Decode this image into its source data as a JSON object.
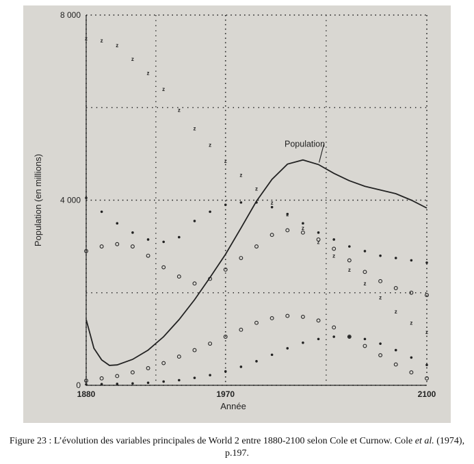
{
  "figure": {
    "caption_parts": [
      {
        "text": "Figure 23 : L’évolution des variables principales de World 2 entre 1880-2100 selon Cole et Curnow. Cole ",
        "italic": false
      },
      {
        "text": "et al.",
        "italic": true
      },
      {
        "text": " (1974), p.197.",
        "italic": false
      }
    ],
    "colors": {
      "scan_bg": "#d9d7d2",
      "ink": "#222222",
      "caption": "#111111"
    }
  },
  "chart_data": {
    "type": "line",
    "title": "",
    "xlabel": "Année",
    "ylabel": "Population (en millions)",
    "xlim": [
      1880,
      2100
    ],
    "ylim": [
      0,
      8000
    ],
    "x_ticks": [
      1880,
      1970,
      2100
    ],
    "y_ticks": [
      0,
      4000,
      8000
    ],
    "grid": true,
    "legend": "none",
    "series": [
      {
        "name": "Population",
        "marker": "line",
        "points": [
          [
            1880,
            1420
          ],
          [
            1885,
            800
          ],
          [
            1890,
            550
          ],
          [
            1895,
            430
          ],
          [
            1900,
            440
          ],
          [
            1910,
            560
          ],
          [
            1920,
            760
          ],
          [
            1930,
            1050
          ],
          [
            1940,
            1420
          ],
          [
            1950,
            1850
          ],
          [
            1960,
            2330
          ],
          [
            1970,
            2830
          ],
          [
            1980,
            3400
          ],
          [
            1990,
            3980
          ],
          [
            2000,
            4450
          ],
          [
            2010,
            4780
          ],
          [
            2020,
            4870
          ],
          [
            2030,
            4770
          ],
          [
            2040,
            4580
          ],
          [
            2050,
            4420
          ],
          [
            2060,
            4300
          ],
          [
            2070,
            4220
          ],
          [
            2080,
            4140
          ],
          [
            2090,
            4000
          ],
          [
            2100,
            3830
          ]
        ]
      },
      {
        "marker": "z",
        "points": [
          [
            1880,
            7500
          ],
          [
            1890,
            7450
          ],
          [
            1900,
            7350
          ],
          [
            1910,
            7050
          ],
          [
            1920,
            6750
          ],
          [
            1930,
            6400
          ],
          [
            1940,
            5950
          ],
          [
            1950,
            5550
          ],
          [
            1960,
            5200
          ],
          [
            1970,
            4850
          ],
          [
            1980,
            4550
          ],
          [
            1990,
            4250
          ],
          [
            2000,
            3950
          ],
          [
            2010,
            3700
          ],
          [
            2020,
            3400
          ],
          [
            2030,
            3100
          ],
          [
            2040,
            2800
          ],
          [
            2050,
            2500
          ],
          [
            2060,
            2200
          ],
          [
            2070,
            1900
          ],
          [
            2080,
            1600
          ],
          [
            2090,
            1350
          ],
          [
            2100,
            1150
          ]
        ]
      },
      {
        "marker": "dot",
        "points": [
          [
            1880,
            4050
          ],
          [
            1890,
            3750
          ],
          [
            1900,
            3500
          ],
          [
            1910,
            3300
          ],
          [
            1920,
            3150
          ],
          [
            1930,
            3100
          ],
          [
            1940,
            3200
          ],
          [
            1950,
            3550
          ],
          [
            1960,
            3750
          ],
          [
            1970,
            3900
          ],
          [
            1980,
            3950
          ],
          [
            1990,
            3950
          ],
          [
            2000,
            3850
          ],
          [
            2010,
            3700
          ],
          [
            2020,
            3500
          ],
          [
            2030,
            3300
          ],
          [
            2040,
            3150
          ],
          [
            2050,
            3000
          ],
          [
            2060,
            2900
          ],
          [
            2070,
            2800
          ],
          [
            2080,
            2750
          ],
          [
            2090,
            2700
          ],
          [
            2100,
            2650
          ]
        ]
      },
      {
        "marker": "circle",
        "points": [
          [
            1880,
            2900
          ],
          [
            1890,
            3000
          ],
          [
            1900,
            3050
          ],
          [
            1910,
            3000
          ],
          [
            1920,
            2800
          ],
          [
            1930,
            2550
          ],
          [
            1940,
            2350
          ],
          [
            1950,
            2200
          ],
          [
            1960,
            2300
          ],
          [
            1970,
            2500
          ],
          [
            1980,
            2750
          ],
          [
            1990,
            3000
          ],
          [
            2000,
            3250
          ],
          [
            2010,
            3350
          ],
          [
            2020,
            3300
          ],
          [
            2030,
            3150
          ],
          [
            2040,
            2950
          ],
          [
            2050,
            2700
          ],
          [
            2060,
            2450
          ],
          [
            2070,
            2250
          ],
          [
            2080,
            2100
          ],
          [
            2090,
            2000
          ],
          [
            2100,
            1950
          ]
        ]
      },
      {
        "marker": "circle",
        "points": [
          [
            1880,
            100
          ],
          [
            1890,
            150
          ],
          [
            1900,
            200
          ],
          [
            1910,
            280
          ],
          [
            1920,
            370
          ],
          [
            1930,
            480
          ],
          [
            1940,
            620
          ],
          [
            1950,
            760
          ],
          [
            1960,
            900
          ],
          [
            1970,
            1050
          ],
          [
            1980,
            1200
          ],
          [
            1990,
            1350
          ],
          [
            2000,
            1450
          ],
          [
            2010,
            1500
          ],
          [
            2020,
            1480
          ],
          [
            2030,
            1400
          ],
          [
            2040,
            1250
          ],
          [
            2050,
            1050
          ],
          [
            2060,
            850
          ],
          [
            2070,
            650
          ],
          [
            2080,
            450
          ],
          [
            2090,
            280
          ],
          [
            2100,
            150
          ]
        ]
      },
      {
        "marker": "dot",
        "points": [
          [
            1880,
            20
          ],
          [
            1890,
            25
          ],
          [
            1900,
            30
          ],
          [
            1910,
            40
          ],
          [
            1920,
            55
          ],
          [
            1930,
            80
          ],
          [
            1940,
            110
          ],
          [
            1950,
            160
          ],
          [
            1960,
            220
          ],
          [
            1970,
            300
          ],
          [
            1980,
            400
          ],
          [
            1990,
            520
          ],
          [
            2000,
            660
          ],
          [
            2010,
            800
          ],
          [
            2020,
            920
          ],
          [
            2030,
            1000
          ],
          [
            2040,
            1050
          ],
          [
            2050,
            1050
          ],
          [
            2060,
            1000
          ],
          [
            2070,
            900
          ],
          [
            2080,
            760
          ],
          [
            2090,
            600
          ],
          [
            2100,
            440
          ]
        ]
      }
    ],
    "annotations": [
      {
        "text": "Population",
        "series": 0,
        "at_x": 2027
      }
    ]
  }
}
